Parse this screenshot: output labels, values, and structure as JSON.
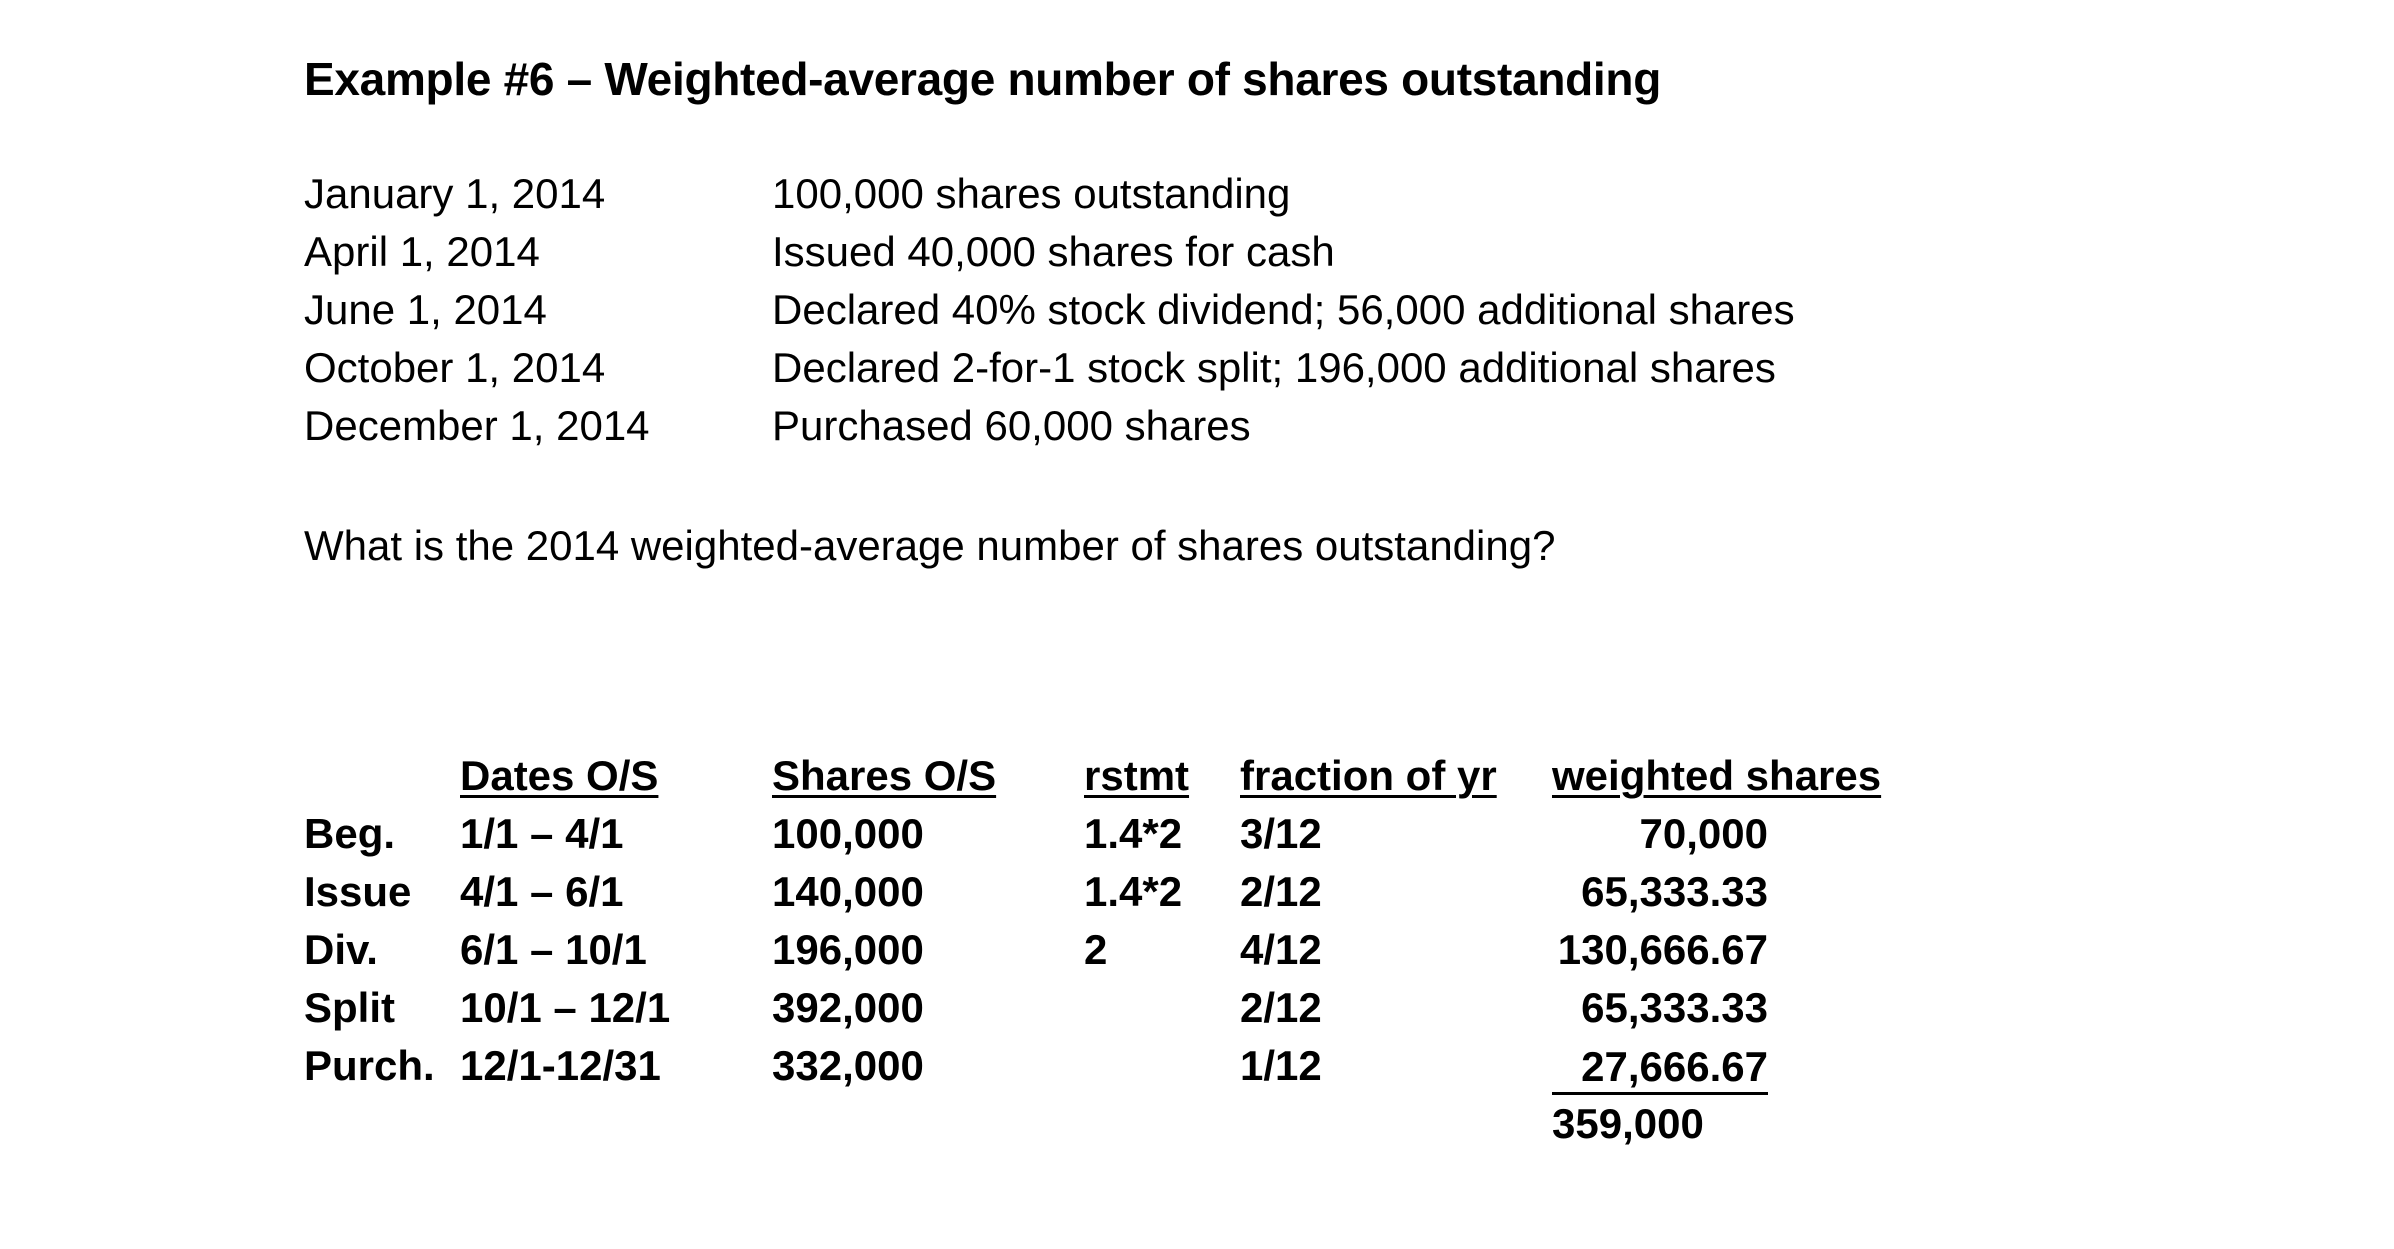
{
  "title": "Example #6 – Weighted-average number of shares outstanding",
  "events": [
    {
      "date": "January 1, 2014",
      "description": "100,000 shares outstanding"
    },
    {
      "date": "April 1, 2014",
      "description": "Issued 40,000 shares for cash"
    },
    {
      "date": "June 1, 2014",
      "description": "Declared 40% stock dividend; 56,000 additional shares"
    },
    {
      "date": "October 1, 2014",
      "description": "Declared 2-for-1 stock split; 196,000 additional shares"
    },
    {
      "date": "December 1, 2014",
      "description": "Purchased 60,000 shares"
    }
  ],
  "question": "What is the 2014 weighted-average number of shares outstanding?",
  "table": {
    "headers": {
      "dates": "Dates O/S",
      "shares": "Shares O/S",
      "rstmt": "rstmt",
      "fraction": "fraction of yr",
      "weighted": "weighted shares"
    },
    "rows": [
      {
        "label": "Beg.",
        "dates": "1/1 – 4/1",
        "shares": "100,000",
        "rstmt": "1.4*2",
        "fraction": "3/12",
        "weighted": "70,000"
      },
      {
        "label": "Issue",
        "dates": "4/1 – 6/1",
        "shares": "140,000",
        "rstmt": "1.4*2",
        "fraction": "2/12",
        "weighted": "65,333.33"
      },
      {
        "label": "Div.",
        "dates": "6/1 – 10/1",
        "shares": "196,000",
        "rstmt": "2",
        "fraction": "4/12",
        "weighted": "130,666.67"
      },
      {
        "label": "Split",
        "dates": "10/1 – 12/1",
        "shares": "392,000",
        "rstmt": "",
        "fraction": "2/12",
        "weighted": "65,333.33"
      },
      {
        "label": "Purch.",
        "dates": "12/1-12/31",
        "shares": "332,000",
        "rstmt": "",
        "fraction": "1/12",
        "weighted": "27,666.67"
      }
    ],
    "total": "359,000"
  }
}
